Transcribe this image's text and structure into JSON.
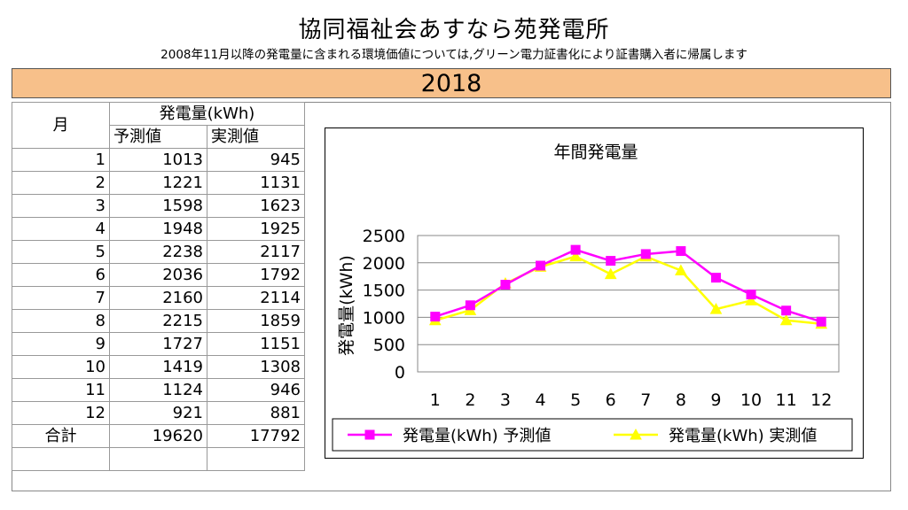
{
  "header": {
    "title": "協同福祉会あすなら苑発電所",
    "subtitle": "2008年11月以降の発電量に含まれる環境価値については,グリーン電力証書化により証書購入者に帰属します",
    "year": "2018"
  },
  "table": {
    "month_header": "月",
    "group_header": "発電量(kWh)",
    "col_forecast": "予測値",
    "col_actual": "実測値",
    "rows": [
      {
        "month": "1",
        "forecast": "1013",
        "actual": "945"
      },
      {
        "month": "2",
        "forecast": "1221",
        "actual": "1131"
      },
      {
        "month": "3",
        "forecast": "1598",
        "actual": "1623"
      },
      {
        "month": "4",
        "forecast": "1948",
        "actual": "1925"
      },
      {
        "month": "5",
        "forecast": "2238",
        "actual": "2117"
      },
      {
        "month": "6",
        "forecast": "2036",
        "actual": "1792"
      },
      {
        "month": "7",
        "forecast": "2160",
        "actual": "2114"
      },
      {
        "month": "8",
        "forecast": "2215",
        "actual": "1859"
      },
      {
        "month": "9",
        "forecast": "1727",
        "actual": "1151"
      },
      {
        "month": "10",
        "forecast": "1419",
        "actual": "1308"
      },
      {
        "month": "11",
        "forecast": "1124",
        "actual": "946"
      },
      {
        "month": "12",
        "forecast": "921",
        "actual": "881"
      }
    ],
    "total_label": "合計",
    "total_forecast": "19620",
    "total_actual": "17792"
  },
  "chart_data": {
    "type": "line",
    "title": "年間発電量",
    "ylabel": "発電量(kWh)",
    "xlabel": "",
    "categories": [
      "1",
      "2",
      "3",
      "4",
      "5",
      "6",
      "7",
      "8",
      "9",
      "10",
      "11",
      "12"
    ],
    "ylim": [
      0,
      2500
    ],
    "yticks": [
      0,
      500,
      1000,
      1500,
      2000,
      2500
    ],
    "grid": true,
    "legend": "bottom",
    "series": [
      {
        "name": "発電量(kWh) 予測値",
        "color": "#ff00ff",
        "marker": "square",
        "values": [
          1013,
          1221,
          1598,
          1948,
          2238,
          2036,
          2160,
          2215,
          1727,
          1419,
          1124,
          921
        ]
      },
      {
        "name": "発電量(kWh) 実測値",
        "color": "#ffff00",
        "marker": "triangle",
        "values": [
          945,
          1131,
          1623,
          1925,
          2117,
          1792,
          2114,
          1859,
          1151,
          1308,
          946,
          881
        ]
      }
    ]
  }
}
